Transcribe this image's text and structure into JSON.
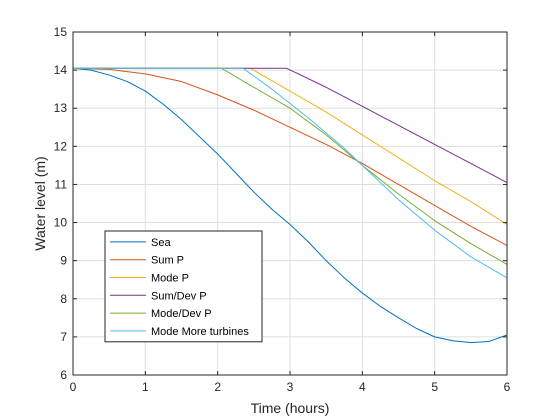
{
  "chart_data": {
    "type": "line",
    "title": "",
    "xlabel": "Time (hours)",
    "ylabel": "Water level (m)",
    "xlim": [
      0,
      6
    ],
    "ylim": [
      6,
      15
    ],
    "xticks": [
      0,
      1,
      2,
      3,
      4,
      5,
      6
    ],
    "yticks": [
      6,
      7,
      8,
      9,
      10,
      11,
      12,
      13,
      14,
      15
    ],
    "grid": true,
    "legend_position": "bottom-left",
    "series": [
      {
        "name": "Sea",
        "color": "#0072BD",
        "x": [
          0,
          0.25,
          0.5,
          0.75,
          1,
          1.25,
          1.5,
          1.75,
          2,
          2.25,
          2.5,
          2.75,
          3,
          3.25,
          3.5,
          3.75,
          4,
          4.25,
          4.5,
          4.75,
          5,
          5.25,
          5.5,
          5.75,
          6
        ],
        "y": [
          14.05,
          14.0,
          13.87,
          13.7,
          13.45,
          13.1,
          12.7,
          12.25,
          11.8,
          11.3,
          10.8,
          10.35,
          9.95,
          9.5,
          9.0,
          8.55,
          8.15,
          7.8,
          7.5,
          7.22,
          7.0,
          6.9,
          6.85,
          6.88,
          7.05
        ]
      },
      {
        "name": "Sum P",
        "color": "#D95319",
        "x": [
          0,
          0.5,
          1,
          1.5,
          2,
          2.5,
          3,
          3.5,
          4,
          4.5,
          5,
          5.5,
          6
        ],
        "y": [
          14.05,
          14.02,
          13.9,
          13.7,
          13.35,
          12.95,
          12.5,
          12.05,
          11.55,
          11.0,
          10.45,
          9.9,
          9.4
        ]
      },
      {
        "name": "Mode P",
        "color": "#EDB120",
        "x": [
          0,
          2.45,
          3,
          3.5,
          4,
          4.5,
          5,
          5.5,
          6
        ],
        "y": [
          14.05,
          14.05,
          13.45,
          12.9,
          12.3,
          11.7,
          11.1,
          10.55,
          9.95
        ]
      },
      {
        "name": "Sum/Dev P",
        "color": "#7E2F8E",
        "x": [
          0,
          2.95,
          3.5,
          4,
          4.5,
          5,
          5.5,
          6
        ],
        "y": [
          14.05,
          14.05,
          13.55,
          13.05,
          12.55,
          12.05,
          11.55,
          11.05
        ]
      },
      {
        "name": "Mode/Dev P",
        "color": "#77AC30",
        "x": [
          0,
          2.05,
          2.5,
          3,
          3.5,
          4,
          4.5,
          5,
          5.5,
          6
        ],
        "y": [
          14.05,
          14.05,
          13.55,
          13.0,
          12.3,
          11.5,
          10.75,
          10.05,
          9.45,
          8.9
        ]
      },
      {
        "name": "Mode More turbines",
        "color": "#4DBEEE",
        "x": [
          0,
          2.35,
          2.75,
          3.25,
          3.75,
          4,
          4.5,
          5,
          5.5,
          6
        ],
        "y": [
          14.05,
          14.05,
          13.5,
          12.75,
          11.95,
          11.5,
          10.6,
          9.8,
          9.1,
          8.55
        ]
      }
    ]
  }
}
